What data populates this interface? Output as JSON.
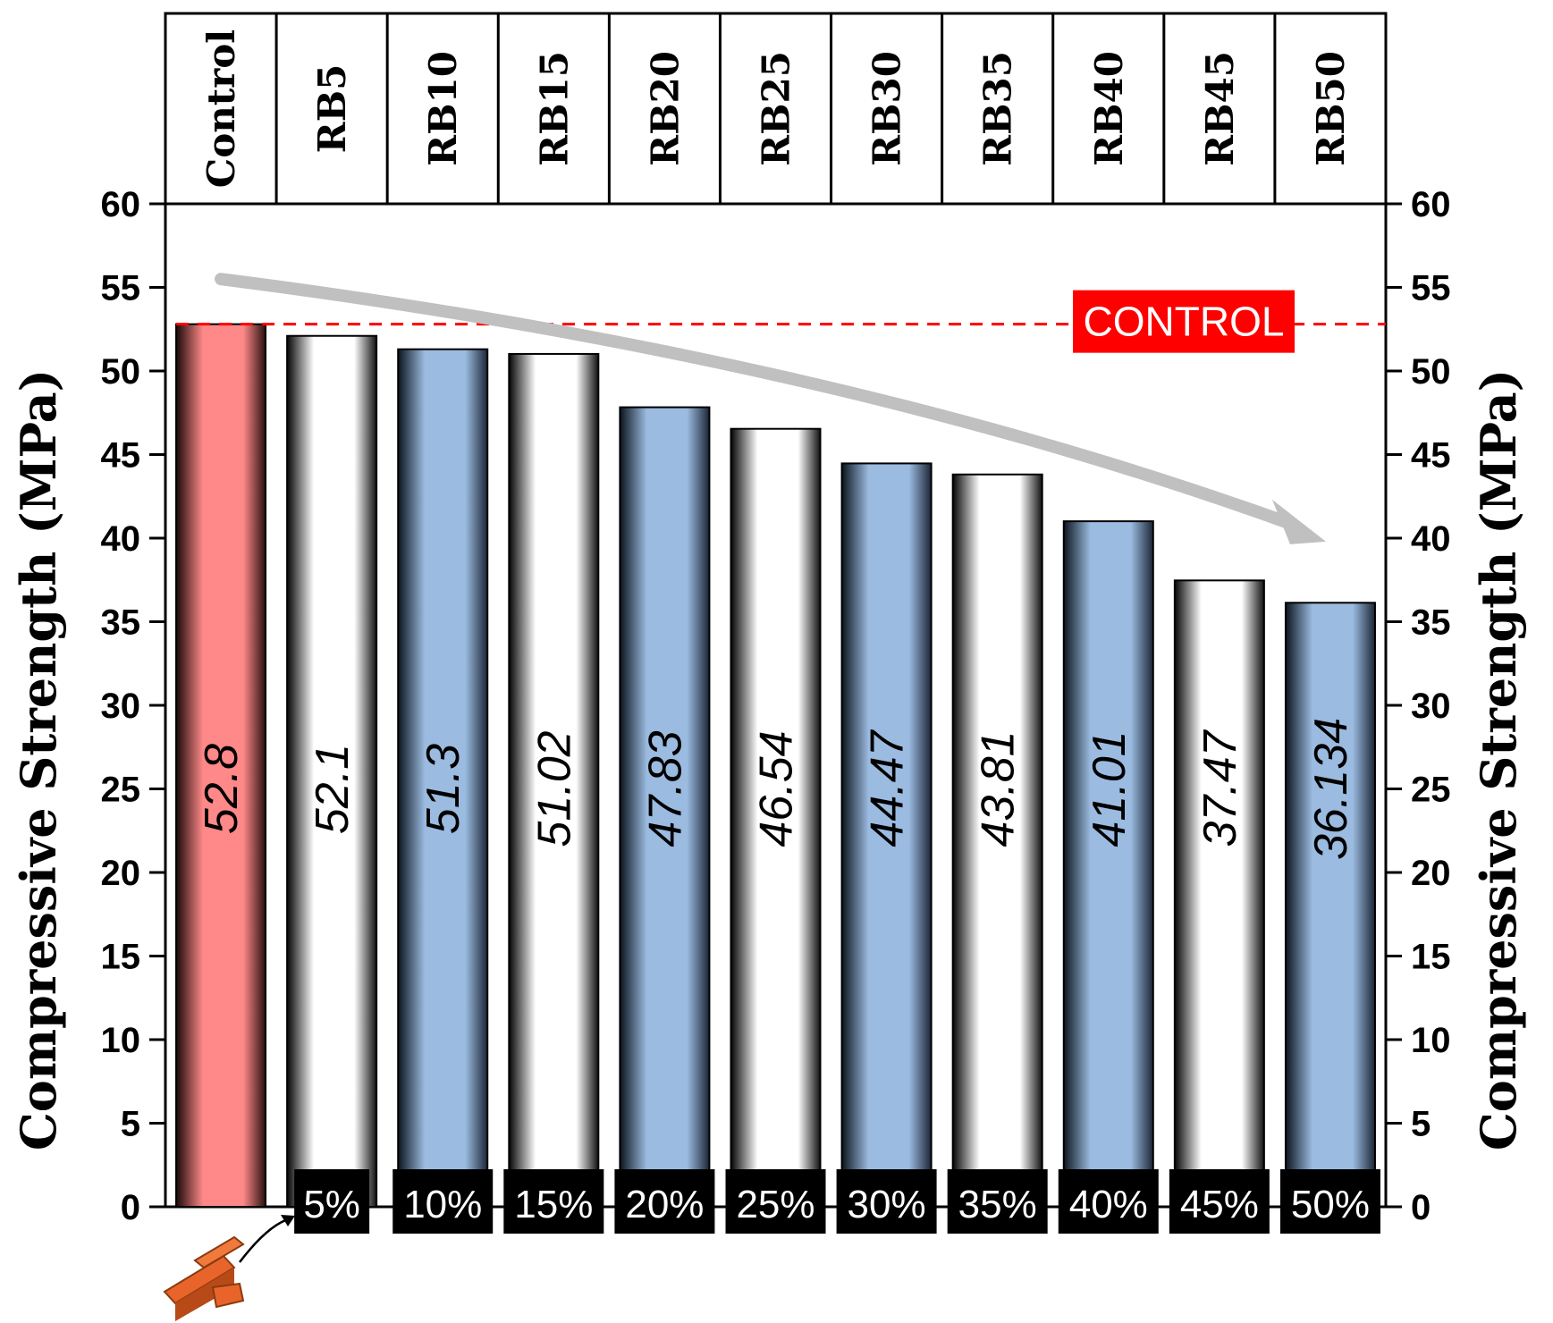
{
  "chart_data": {
    "type": "bar",
    "categories": [
      "Control",
      "RB5",
      "RB10",
      "RB15",
      "RB20",
      "RB25",
      "RB30",
      "RB35",
      "RB40",
      "RB45",
      "RB50"
    ],
    "values": [
      52.8,
      52.1,
      51.3,
      51.02,
      47.83,
      46.54,
      44.47,
      43.81,
      41.01,
      37.47,
      36.134
    ],
    "value_labels": [
      "52.8",
      "52.1",
      "51.3",
      "51.02",
      "47.83",
      "46.54",
      "44.47",
      "43.81",
      "41.01",
      "37.47",
      "36.134"
    ],
    "replacement_labels": [
      "",
      "5%",
      "10%",
      "15%",
      "20%",
      "25%",
      "30%",
      "35%",
      "40%",
      "45%",
      "50%"
    ],
    "bar_styles": [
      "control",
      "white",
      "blue",
      "white",
      "blue",
      "white",
      "blue",
      "white",
      "blue",
      "white",
      "blue"
    ],
    "ylabel_left": "Compressive Strength (MPa)",
    "ylabel_right": "Compressive Strength (MPa)",
    "ylim": [
      0,
      60
    ],
    "yticks": [
      0,
      5,
      10,
      15,
      20,
      25,
      30,
      35,
      40,
      45,
      50,
      55,
      60
    ],
    "reference_line": {
      "label": "CONTROL",
      "value": 52.8,
      "color": "#ff0000"
    },
    "trend_arrow": {
      "from": {
        "category_index": 0,
        "value": 55.5
      },
      "to": {
        "category_index": 10,
        "value": 39.9
      },
      "color": "#c0c0c0"
    },
    "colors": {
      "control": "#ff8888",
      "blue": "#9bbbe0",
      "white": "#ffffff",
      "badge": "#000000",
      "brick": "#e8642a"
    },
    "grid": false,
    "legend": "none"
  },
  "icons": {
    "brick": "brick-icon",
    "arrow": "curved-arrow-icon"
  }
}
